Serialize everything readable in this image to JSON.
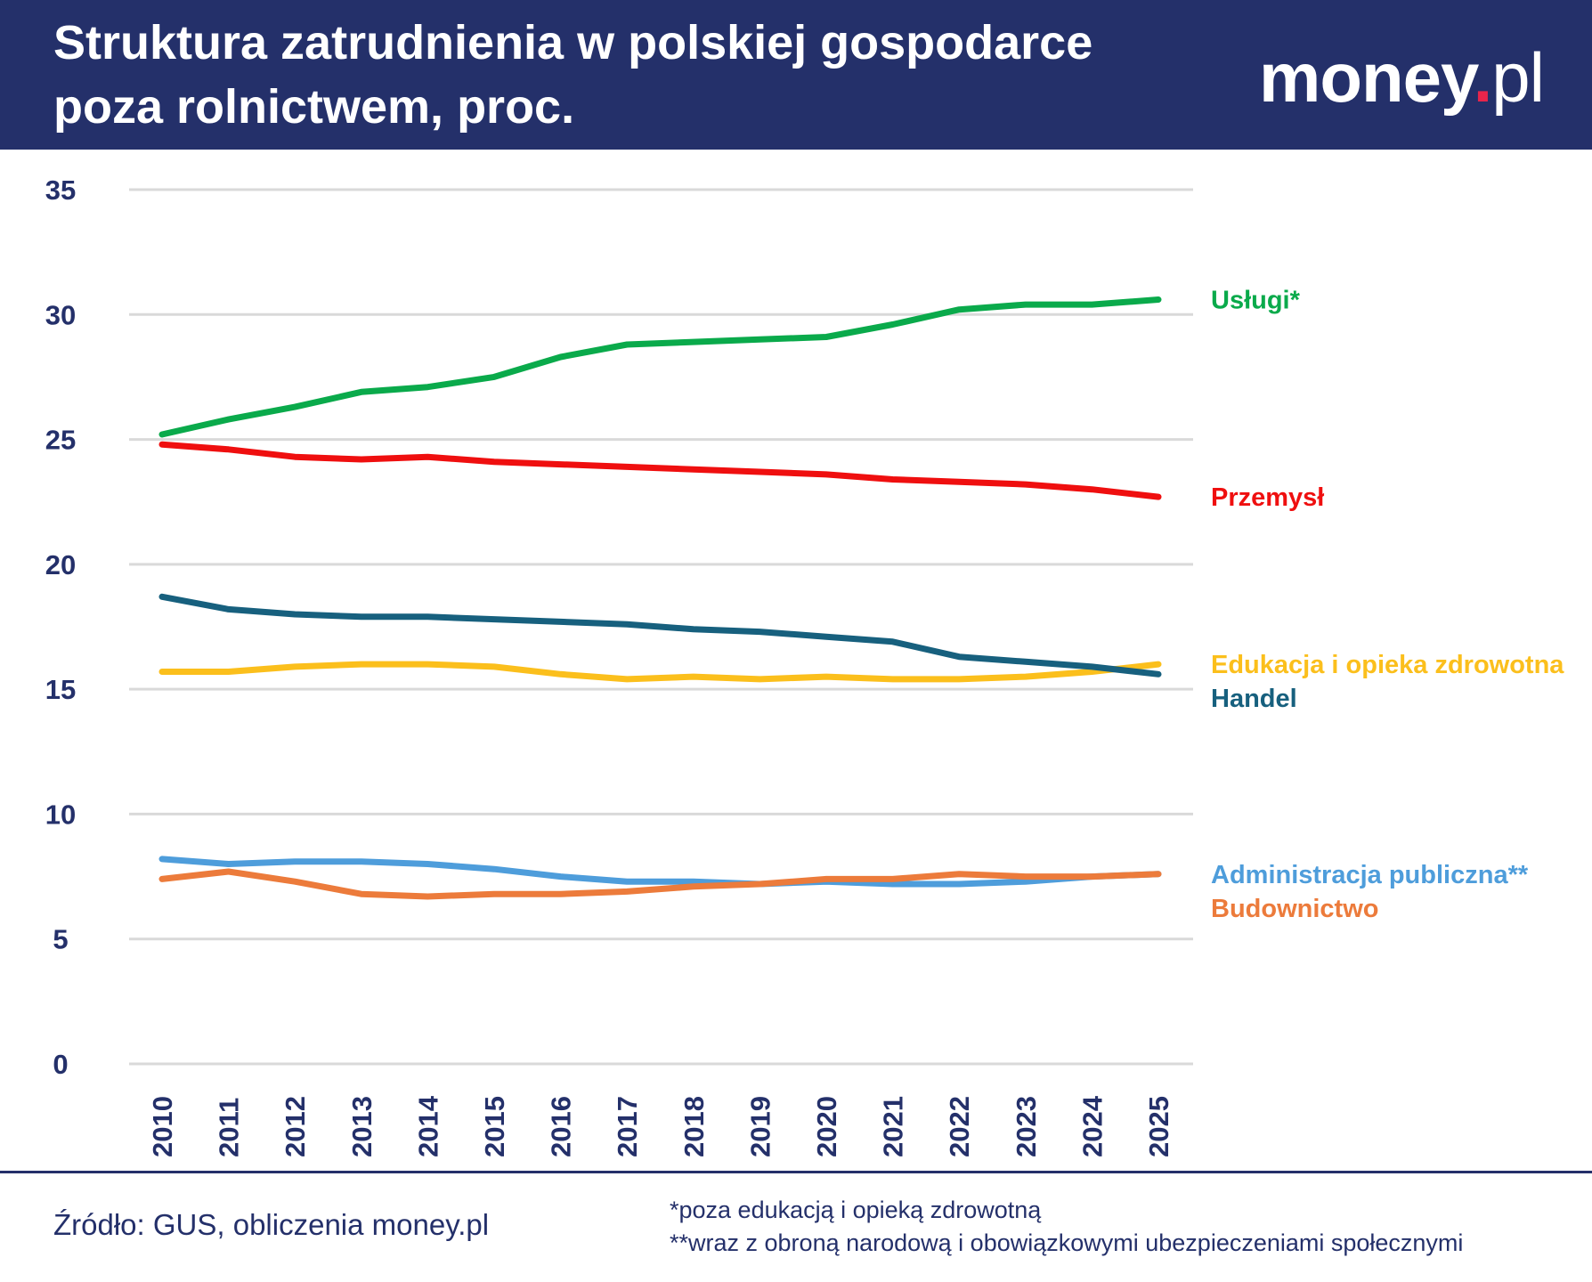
{
  "header": {
    "title_line1": "Struktura zatrudnienia w polskiej gospodarce",
    "title_line2": "poza rolnictwem, proc.",
    "logo_main": "money",
    "logo_dot": ".",
    "logo_suffix": "pl"
  },
  "colors": {
    "header_bg": "#24306a",
    "text_dark": "#24306a",
    "logo_dot": "#e8254b",
    "grid": "#d9d9d9"
  },
  "chart_data": {
    "type": "line",
    "title": "Struktura zatrudnienia w polskiej gospodarce poza rolnictwem, proc.",
    "x": [
      "2010",
      "2011",
      "2012",
      "2013",
      "2014",
      "2015",
      "2016",
      "2017",
      "2018",
      "2019",
      "2020",
      "2021",
      "2022",
      "2023",
      "2024",
      "2025"
    ],
    "ylim": [
      0,
      35
    ],
    "yticks": [
      0,
      5,
      10,
      15,
      20,
      25,
      30,
      35
    ],
    "grid": true,
    "legend": "right, labels at line ends",
    "series": [
      {
        "name": "Usługi*",
        "color": "#0aaa4b",
        "values": [
          25.2,
          25.8,
          26.3,
          26.9,
          27.1,
          27.5,
          28.3,
          28.8,
          28.9,
          29.0,
          29.1,
          29.6,
          30.2,
          30.4,
          30.4,
          30.6
        ]
      },
      {
        "name": "Przemysł",
        "color": "#ef0f0f",
        "values": [
          24.8,
          24.6,
          24.3,
          24.2,
          24.3,
          24.1,
          24.0,
          23.9,
          23.8,
          23.7,
          23.6,
          23.4,
          23.3,
          23.2,
          23.0,
          22.7
        ]
      },
      {
        "name": "Edukacja i opieka zdrowotna",
        "color": "#fbbf1c",
        "values": [
          15.7,
          15.7,
          15.9,
          16.0,
          16.0,
          15.9,
          15.6,
          15.4,
          15.5,
          15.4,
          15.5,
          15.4,
          15.4,
          15.5,
          15.7,
          16.0
        ]
      },
      {
        "name": "Handel",
        "color": "#17607e",
        "values": [
          18.7,
          18.2,
          18.0,
          17.9,
          17.9,
          17.8,
          17.7,
          17.6,
          17.4,
          17.3,
          17.1,
          16.9,
          16.3,
          16.1,
          15.9,
          15.6
        ]
      },
      {
        "name": "Administracja publiczna**",
        "color": "#4e9ddb",
        "values": [
          8.2,
          8.0,
          8.1,
          8.1,
          8.0,
          7.8,
          7.5,
          7.3,
          7.3,
          7.2,
          7.3,
          7.2,
          7.2,
          7.3,
          7.5,
          7.6
        ]
      },
      {
        "name": "Budownictwo",
        "color": "#ec7b3b",
        "values": [
          7.4,
          7.7,
          7.3,
          6.8,
          6.7,
          6.8,
          6.8,
          6.9,
          7.1,
          7.2,
          7.4,
          7.4,
          7.6,
          7.5,
          7.5,
          7.6
        ]
      }
    ]
  },
  "footer": {
    "source": "Źródło: GUS, obliczenia money.pl",
    "note1": "*poza edukacją i opieką zdrowotną",
    "note2": "**wraz z obroną narodową i obowiązkowymi ubezpieczeniami społecznymi"
  }
}
